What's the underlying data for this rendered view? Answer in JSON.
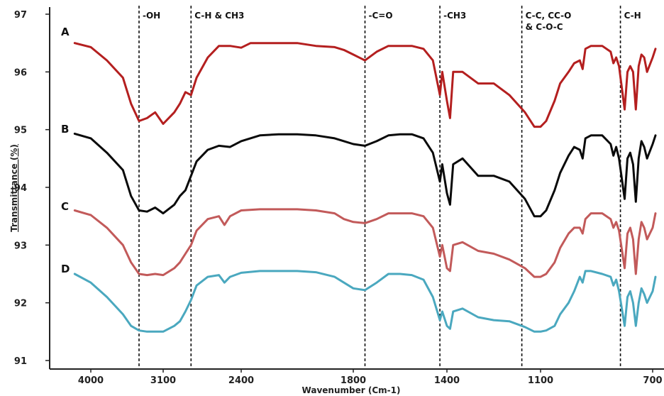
{
  "chart_data": {
    "type": "line",
    "title": "",
    "xlabel": "Wavenumber (Cm-1)",
    "ylabel": "Transmittance (%)",
    "xlim": [
      4200,
      700
    ],
    "ylim": [
      90.9,
      97.1
    ],
    "x_ticks": [
      {
        "value": 4000,
        "label": "4000"
      },
      {
        "value": 3100,
        "label": "3100"
      },
      {
        "value": 2400,
        "label": "2400"
      },
      {
        "value": 1800,
        "label": "1800"
      },
      {
        "value": 1400,
        "label": "1400"
      },
      {
        "value": 1100,
        "label": "1100"
      },
      {
        "value": 700,
        "label": "700"
      }
    ],
    "y_ticks": [
      {
        "value": 97,
        "label": "97"
      },
      {
        "value": 96,
        "label": "96"
      },
      {
        "value": 95,
        "label": "95"
      },
      {
        "value": 94,
        "label": "94"
      },
      {
        "value": 93,
        "label": "93"
      },
      {
        "value": 92,
        "label": "92"
      },
      {
        "value": 91,
        "label": "91"
      }
    ],
    "grid": false,
    "annotations": [
      {
        "x": 3400,
        "label": "-OH"
      },
      {
        "x": 2850,
        "label": "C-H & CH3"
      },
      {
        "x": 1750,
        "label": "-C=O"
      },
      {
        "x": 1430,
        "label": "-CH3"
      },
      {
        "x": 1160,
        "label": "C-C, CC-O\n& C-O-C"
      },
      {
        "x": 815,
        "label": "C-H"
      }
    ],
    "series": [
      {
        "name": "A",
        "color": "#b41f1f",
        "points": [
          [
            4200,
            96.5
          ],
          [
            4000,
            96.43
          ],
          [
            3800,
            96.2
          ],
          [
            3600,
            95.9
          ],
          [
            3500,
            95.45
          ],
          [
            3400,
            95.15
          ],
          [
            3300,
            95.2
          ],
          [
            3250,
            95.25
          ],
          [
            3200,
            95.3
          ],
          [
            3100,
            95.1
          ],
          [
            3000,
            95.3
          ],
          [
            2950,
            95.45
          ],
          [
            2900,
            95.65
          ],
          [
            2850,
            95.6
          ],
          [
            2800,
            95.9
          ],
          [
            2700,
            96.25
          ],
          [
            2600,
            96.45
          ],
          [
            2500,
            96.45
          ],
          [
            2400,
            96.42
          ],
          [
            2350,
            96.5
          ],
          [
            2300,
            96.5
          ],
          [
            2200,
            96.5
          ],
          [
            2100,
            96.5
          ],
          [
            2000,
            96.45
          ],
          [
            1900,
            96.43
          ],
          [
            1850,
            96.38
          ],
          [
            1800,
            96.3
          ],
          [
            1750,
            96.2
          ],
          [
            1700,
            96.35
          ],
          [
            1650,
            96.45
          ],
          [
            1600,
            96.45
          ],
          [
            1550,
            96.45
          ],
          [
            1500,
            96.4
          ],
          [
            1460,
            96.2
          ],
          [
            1430,
            95.6
          ],
          [
            1420,
            96.0
          ],
          [
            1400,
            95.5
          ],
          [
            1390,
            95.2
          ],
          [
            1380,
            96.0
          ],
          [
            1350,
            96.0
          ],
          [
            1300,
            95.8
          ],
          [
            1250,
            95.8
          ],
          [
            1200,
            95.6
          ],
          [
            1150,
            95.3
          ],
          [
            1120,
            95.05
          ],
          [
            1100,
            95.05
          ],
          [
            1080,
            95.15
          ],
          [
            1050,
            95.5
          ],
          [
            1030,
            95.8
          ],
          [
            1000,
            96.0
          ],
          [
            980,
            96.15
          ],
          [
            960,
            96.2
          ],
          [
            950,
            96.05
          ],
          [
            940,
            96.4
          ],
          [
            920,
            96.45
          ],
          [
            880,
            96.45
          ],
          [
            850,
            96.35
          ],
          [
            840,
            96.15
          ],
          [
            830,
            96.25
          ],
          [
            820,
            96.1
          ],
          [
            800,
            95.35
          ],
          [
            790,
            96.0
          ],
          [
            780,
            96.1
          ],
          [
            770,
            96.0
          ],
          [
            760,
            95.35
          ],
          [
            750,
            96.1
          ],
          [
            740,
            96.3
          ],
          [
            730,
            96.25
          ],
          [
            720,
            96.0
          ],
          [
            700,
            96.25
          ],
          [
            690,
            96.4
          ]
        ]
      },
      {
        "name": "B",
        "color": "#0a0a0a",
        "points": [
          [
            4200,
            94.93
          ],
          [
            4000,
            94.85
          ],
          [
            3800,
            94.6
          ],
          [
            3600,
            94.3
          ],
          [
            3500,
            93.85
          ],
          [
            3400,
            93.6
          ],
          [
            3300,
            93.58
          ],
          [
            3200,
            93.65
          ],
          [
            3100,
            93.55
          ],
          [
            3000,
            93.7
          ],
          [
            2950,
            93.85
          ],
          [
            2900,
            93.95
          ],
          [
            2850,
            94.2
          ],
          [
            2800,
            94.45
          ],
          [
            2700,
            94.65
          ],
          [
            2600,
            94.72
          ],
          [
            2500,
            94.7
          ],
          [
            2400,
            94.8
          ],
          [
            2300,
            94.9
          ],
          [
            2200,
            94.92
          ],
          [
            2100,
            94.92
          ],
          [
            2000,
            94.9
          ],
          [
            1900,
            94.85
          ],
          [
            1850,
            94.8
          ],
          [
            1800,
            94.75
          ],
          [
            1750,
            94.72
          ],
          [
            1700,
            94.8
          ],
          [
            1650,
            94.9
          ],
          [
            1600,
            94.92
          ],
          [
            1550,
            94.92
          ],
          [
            1500,
            94.85
          ],
          [
            1460,
            94.6
          ],
          [
            1430,
            94.1
          ],
          [
            1420,
            94.4
          ],
          [
            1400,
            93.9
          ],
          [
            1390,
            93.7
          ],
          [
            1380,
            94.4
          ],
          [
            1350,
            94.5
          ],
          [
            1300,
            94.2
          ],
          [
            1250,
            94.2
          ],
          [
            1200,
            94.1
          ],
          [
            1150,
            93.8
          ],
          [
            1120,
            93.5
          ],
          [
            1100,
            93.5
          ],
          [
            1080,
            93.6
          ],
          [
            1050,
            93.95
          ],
          [
            1030,
            94.25
          ],
          [
            1000,
            94.55
          ],
          [
            980,
            94.7
          ],
          [
            960,
            94.65
          ],
          [
            950,
            94.5
          ],
          [
            940,
            94.85
          ],
          [
            920,
            94.9
          ],
          [
            880,
            94.9
          ],
          [
            850,
            94.75
          ],
          [
            840,
            94.55
          ],
          [
            830,
            94.7
          ],
          [
            820,
            94.5
          ],
          [
            800,
            93.8
          ],
          [
            790,
            94.5
          ],
          [
            780,
            94.6
          ],
          [
            770,
            94.4
          ],
          [
            760,
            93.75
          ],
          [
            750,
            94.5
          ],
          [
            740,
            94.8
          ],
          [
            730,
            94.7
          ],
          [
            720,
            94.5
          ],
          [
            700,
            94.75
          ],
          [
            690,
            94.9
          ]
        ]
      },
      {
        "name": "C",
        "color": "#c25a5a",
        "points": [
          [
            4200,
            93.6
          ],
          [
            4000,
            93.52
          ],
          [
            3800,
            93.3
          ],
          [
            3600,
            93.0
          ],
          [
            3500,
            92.7
          ],
          [
            3400,
            92.5
          ],
          [
            3300,
            92.48
          ],
          [
            3200,
            92.5
          ],
          [
            3100,
            92.48
          ],
          [
            3000,
            92.6
          ],
          [
            2950,
            92.7
          ],
          [
            2900,
            92.85
          ],
          [
            2850,
            93.0
          ],
          [
            2800,
            93.25
          ],
          [
            2700,
            93.45
          ],
          [
            2600,
            93.5
          ],
          [
            2550,
            93.35
          ],
          [
            2500,
            93.5
          ],
          [
            2400,
            93.6
          ],
          [
            2300,
            93.62
          ],
          [
            2200,
            93.62
          ],
          [
            2100,
            93.62
          ],
          [
            2000,
            93.6
          ],
          [
            1900,
            93.55
          ],
          [
            1850,
            93.45
          ],
          [
            1800,
            93.4
          ],
          [
            1750,
            93.38
          ],
          [
            1700,
            93.45
          ],
          [
            1650,
            93.55
          ],
          [
            1600,
            93.55
          ],
          [
            1550,
            93.55
          ],
          [
            1500,
            93.5
          ],
          [
            1460,
            93.3
          ],
          [
            1430,
            92.8
          ],
          [
            1420,
            93.0
          ],
          [
            1400,
            92.6
          ],
          [
            1390,
            92.55
          ],
          [
            1380,
            93.0
          ],
          [
            1350,
            93.05
          ],
          [
            1300,
            92.9
          ],
          [
            1250,
            92.85
          ],
          [
            1200,
            92.75
          ],
          [
            1150,
            92.6
          ],
          [
            1120,
            92.45
          ],
          [
            1100,
            92.45
          ],
          [
            1080,
            92.5
          ],
          [
            1050,
            92.7
          ],
          [
            1030,
            92.95
          ],
          [
            1000,
            93.2
          ],
          [
            980,
            93.3
          ],
          [
            960,
            93.3
          ],
          [
            950,
            93.2
          ],
          [
            940,
            93.45
          ],
          [
            920,
            93.55
          ],
          [
            880,
            93.55
          ],
          [
            850,
            93.45
          ],
          [
            840,
            93.3
          ],
          [
            830,
            93.4
          ],
          [
            820,
            93.25
          ],
          [
            800,
            92.6
          ],
          [
            790,
            93.2
          ],
          [
            780,
            93.3
          ],
          [
            770,
            93.1
          ],
          [
            760,
            92.5
          ],
          [
            750,
            93.1
          ],
          [
            740,
            93.4
          ],
          [
            730,
            93.3
          ],
          [
            720,
            93.1
          ],
          [
            700,
            93.3
          ],
          [
            690,
            93.55
          ]
        ]
      },
      {
        "name": "D",
        "color": "#4aa8bf",
        "points": [
          [
            4200,
            92.5
          ],
          [
            4000,
            92.35
          ],
          [
            3800,
            92.1
          ],
          [
            3600,
            91.8
          ],
          [
            3500,
            91.6
          ],
          [
            3400,
            91.52
          ],
          [
            3300,
            91.5
          ],
          [
            3200,
            91.5
          ],
          [
            3100,
            91.5
          ],
          [
            3000,
            91.6
          ],
          [
            2950,
            91.68
          ],
          [
            2900,
            91.85
          ],
          [
            2850,
            92.05
          ],
          [
            2800,
            92.3
          ],
          [
            2700,
            92.45
          ],
          [
            2600,
            92.48
          ],
          [
            2550,
            92.35
          ],
          [
            2500,
            92.45
          ],
          [
            2400,
            92.52
          ],
          [
            2300,
            92.55
          ],
          [
            2200,
            92.55
          ],
          [
            2100,
            92.55
          ],
          [
            2000,
            92.53
          ],
          [
            1900,
            92.45
          ],
          [
            1850,
            92.35
          ],
          [
            1800,
            92.25
          ],
          [
            1750,
            92.22
          ],
          [
            1700,
            92.35
          ],
          [
            1650,
            92.5
          ],
          [
            1600,
            92.5
          ],
          [
            1550,
            92.48
          ],
          [
            1500,
            92.4
          ],
          [
            1460,
            92.1
          ],
          [
            1430,
            91.7
          ],
          [
            1420,
            91.85
          ],
          [
            1400,
            91.6
          ],
          [
            1390,
            91.55
          ],
          [
            1380,
            91.85
          ],
          [
            1350,
            91.9
          ],
          [
            1300,
            91.75
          ],
          [
            1250,
            91.7
          ],
          [
            1200,
            91.68
          ],
          [
            1150,
            91.58
          ],
          [
            1120,
            91.5
          ],
          [
            1100,
            91.5
          ],
          [
            1080,
            91.52
          ],
          [
            1050,
            91.6
          ],
          [
            1030,
            91.8
          ],
          [
            1000,
            92.0
          ],
          [
            980,
            92.2
          ],
          [
            960,
            92.45
          ],
          [
            950,
            92.35
          ],
          [
            940,
            92.55
          ],
          [
            920,
            92.55
          ],
          [
            880,
            92.5
          ],
          [
            850,
            92.45
          ],
          [
            840,
            92.3
          ],
          [
            830,
            92.4
          ],
          [
            820,
            92.2
          ],
          [
            800,
            91.6
          ],
          [
            790,
            92.1
          ],
          [
            780,
            92.2
          ],
          [
            770,
            92.0
          ],
          [
            760,
            91.6
          ],
          [
            750,
            92.0
          ],
          [
            740,
            92.25
          ],
          [
            730,
            92.15
          ],
          [
            720,
            92.0
          ],
          [
            700,
            92.2
          ],
          [
            690,
            92.45
          ]
        ]
      }
    ]
  }
}
